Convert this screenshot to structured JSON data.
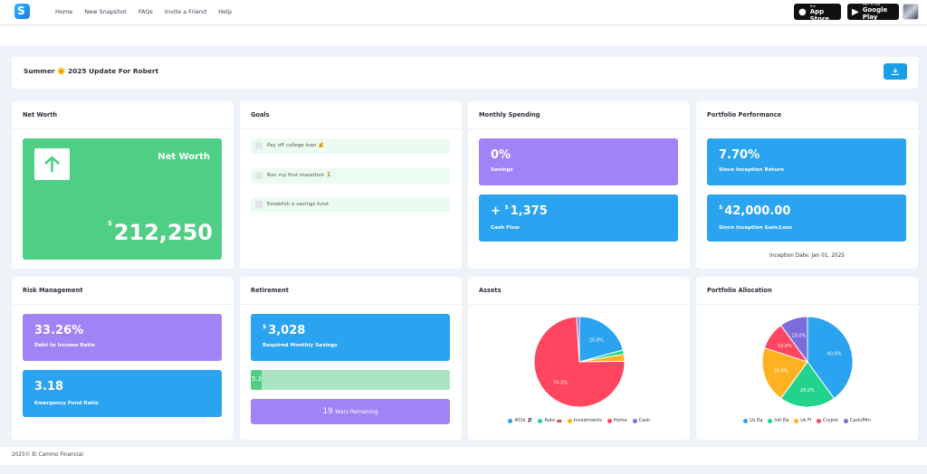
{
  "nav": {
    "logo_letter": "S",
    "links": [
      "Home",
      "New Snapshot",
      "FAQs",
      "Invite a Friend",
      "Help"
    ],
    "appstore": {
      "line1": "Download on the",
      "line2": "App Store"
    },
    "gplay": {
      "line1": "GET IT ON",
      "line2": "Google Play"
    }
  },
  "header": {
    "title": "Summer 🌞 2025 Update For Robert",
    "download_icon": "download-icon"
  },
  "net_worth": {
    "title": "Net Worth",
    "tile_label": "Net Worth",
    "currency": "$",
    "value": "212,250",
    "arrow_icon": "arrow-up-icon"
  },
  "goals": {
    "title": "Goals",
    "items": [
      "Pay off college loan 💰",
      "Run my first marathon 🏃",
      "Establish a savings fund"
    ]
  },
  "monthly_spending": {
    "title": "Monthly Spending",
    "savings_value": "0%",
    "savings_label": "Savings",
    "cashflow_prefix": "+",
    "cashflow_currency": "$",
    "cashflow_value": "1,375",
    "cashflow_label": "Cash Flow"
  },
  "portfolio_performance": {
    "title": "Portfolio Performance",
    "return_value": "7.70%",
    "return_label": "Since Inception Return",
    "gain_currency": "$",
    "gain_value": "42,000.00",
    "gain_label": "Since Inception Gain/Loss",
    "inception": "Inception Date: Jan 01, 2025"
  },
  "risk": {
    "title": "Risk Management",
    "dti_value": "33.26%",
    "dti_label": "Debt to Income Ratio",
    "efr_value": "3.18",
    "efr_label": "Emergency Fund Ratio"
  },
  "retirement": {
    "title": "Retirement",
    "savings_currency": "$",
    "savings_value": "3,028",
    "savings_label": "Required Monthly Savings",
    "progress_pct": 5.3,
    "progress_text": "5.3",
    "years_value": "19",
    "years_label": "Years Remaining"
  },
  "assets": {
    "title": "Assets",
    "chart_data": {
      "type": "pie",
      "labels": [
        "401k 🏖",
        "Auto 🚗",
        "Investments",
        "Home",
        "Cash"
      ],
      "values": [
        20.8,
        1.5,
        2.5,
        74.2,
        1.0
      ],
      "slice_labels": [
        "20.8%",
        "",
        "",
        "74.2%",
        ""
      ],
      "colors": [
        "#2aa3f0",
        "#22d38e",
        "#ffb21f",
        "#ff4560",
        "#7b6cd9"
      ]
    }
  },
  "allocation": {
    "title": "Portfolio Allocation",
    "chart_data": {
      "type": "pie",
      "labels": [
        "Us Eq",
        "Intl Eq",
        "Us Fi",
        "Crypto",
        "Cash/Mm"
      ],
      "values": [
        40,
        20,
        20,
        10,
        10
      ],
      "slice_labels": [
        "40.0%",
        "20.0%",
        "20.0%",
        "10.0%",
        "10.0%"
      ],
      "colors": [
        "#2aa3f0",
        "#22d38e",
        "#ffb21f",
        "#ff4560",
        "#7b6cd9"
      ]
    }
  },
  "footer": {
    "text": "2025© El Camino Financial"
  }
}
